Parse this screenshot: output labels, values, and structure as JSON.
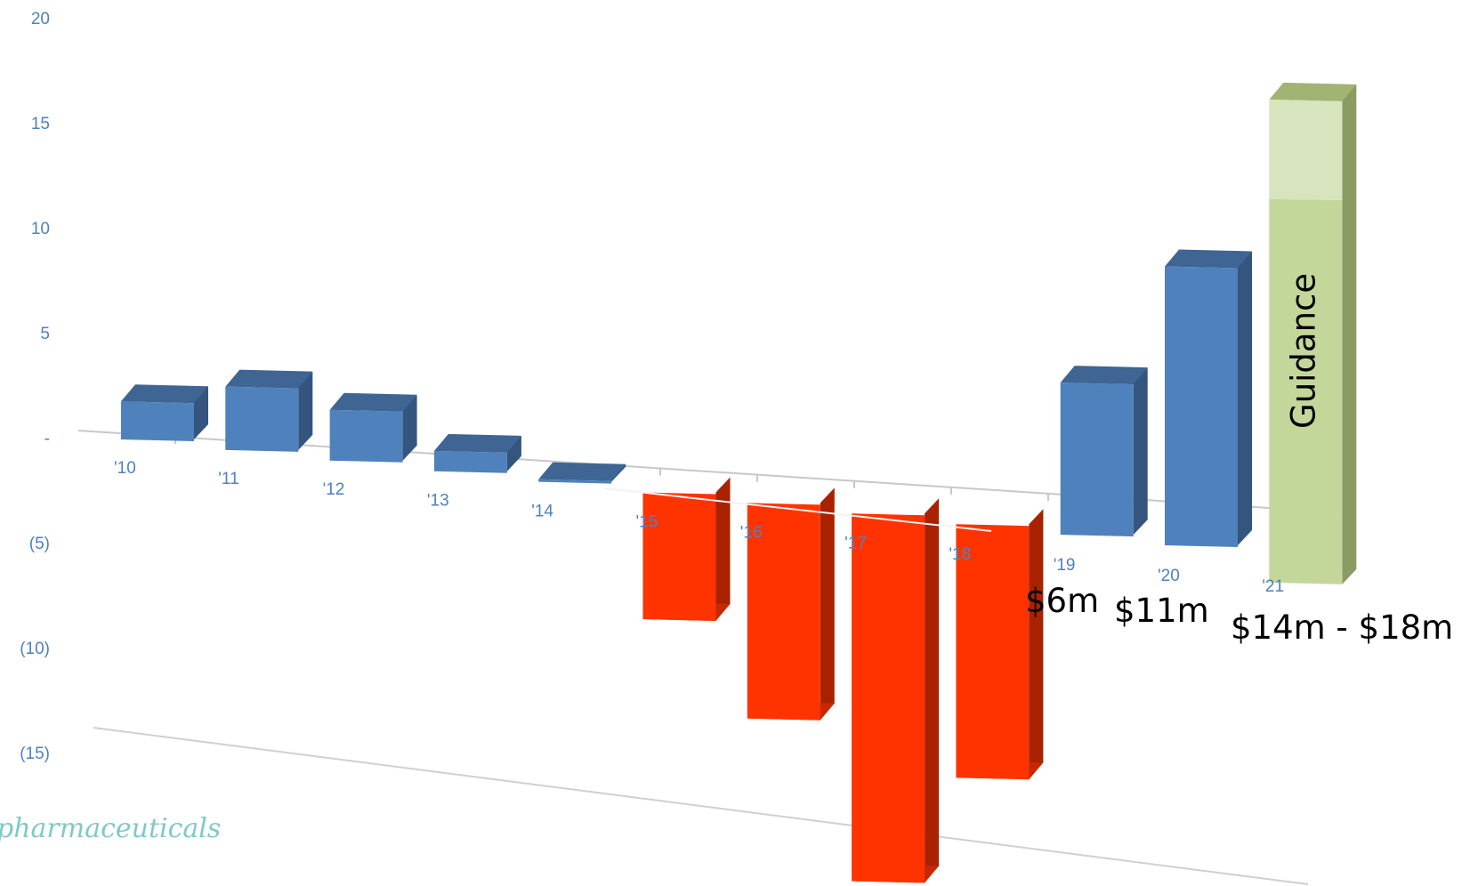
{
  "chart_data": {
    "type": "bar",
    "categories": [
      "'10",
      "'11",
      "'12",
      "'13",
      "'14",
      "'15",
      "'16",
      "'17",
      "'18",
      "'19",
      "'20",
      "'21"
    ],
    "values": [
      1.5,
      2.5,
      2,
      0.8,
      0.1,
      -5,
      -8.5,
      -14.5,
      -10,
      6,
      11,
      18
    ],
    "guidance_range": [
      14,
      18
    ],
    "ylim": [
      -15,
      20
    ],
    "yticks": [
      20,
      15,
      10,
      5,
      0,
      -5,
      -10,
      -15
    ],
    "ytick_labels": [
      "20",
      "15",
      "10",
      "5",
      "-",
      "(5)",
      "(10)",
      "(15)"
    ],
    "annotations": [
      "$6m",
      "$11m",
      "$14m - $18m"
    ],
    "bar_label": "Guidance",
    "colors": {
      "positive": "#4f81bd",
      "negative": "#ff3300",
      "guidance": "#c4d79b",
      "guidance_upper": "#d7e4bd",
      "axis_text": "#4f81bd"
    }
  },
  "watermark": "pharmaceuticals"
}
